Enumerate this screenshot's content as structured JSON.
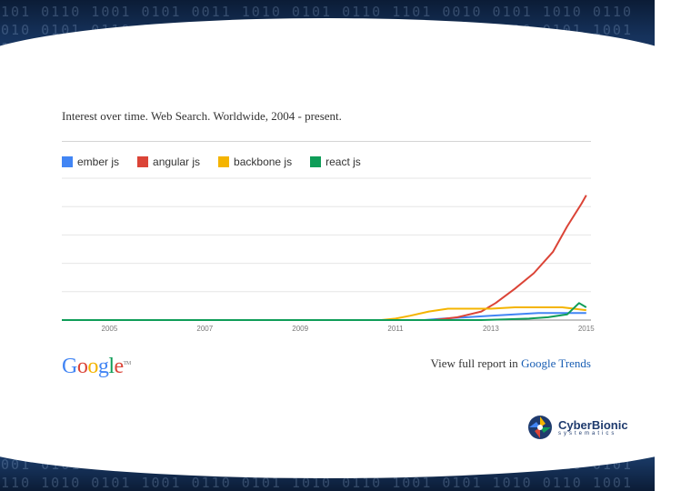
{
  "chart_data": {
    "type": "line",
    "title": "Interest over time. Web Search. Worldwide, 2004 - present.",
    "xlabel": "",
    "ylabel": "",
    "xlim": [
      2004,
      2015.1
    ],
    "ylim": [
      0,
      100
    ],
    "x_ticks": [
      "2005",
      "2007",
      "2009",
      "2011",
      "2013",
      "2015"
    ],
    "x_tick_values": [
      2005,
      2007,
      2009,
      2011,
      2013,
      2015
    ],
    "grid": true,
    "legend": "top",
    "series": [
      {
        "name": "ember js",
        "color": "#4285f4",
        "x": [
          2004,
          2011.6,
          2012.0,
          2012.5,
          2013.0,
          2013.5,
          2014.0,
          2014.5,
          2015.0
        ],
        "y": [
          0,
          0,
          1,
          2,
          3,
          4,
          5,
          5,
          5
        ]
      },
      {
        "name": "angular js",
        "color": "#db4437",
        "x": [
          2004,
          2011.8,
          2012.3,
          2012.8,
          2013.1,
          2013.5,
          2013.9,
          2014.3,
          2014.6,
          2014.9,
          2015.0
        ],
        "y": [
          0,
          0,
          2,
          6,
          12,
          22,
          33,
          48,
          66,
          82,
          88
        ]
      },
      {
        "name": "backbone js",
        "color": "#f4b400",
        "x": [
          2004,
          2010.7,
          2011.0,
          2011.3,
          2011.7,
          2012.1,
          2012.6,
          2013.0,
          2013.5,
          2014.0,
          2014.5,
          2015.0
        ],
        "y": [
          0,
          0,
          1,
          3,
          6,
          8,
          8,
          8,
          9,
          9,
          9,
          7
        ]
      },
      {
        "name": "react js",
        "color": "#0f9d58",
        "x": [
          2004,
          2012.8,
          2013.3,
          2013.8,
          2014.2,
          2014.6,
          2014.85,
          2015.0
        ],
        "y": [
          0,
          0,
          0.5,
          1,
          2,
          4,
          12,
          9
        ]
      }
    ]
  },
  "footer": {
    "google_logo": {
      "G": "G",
      "o1": "o",
      "o2": "o",
      "g": "g",
      "l": "l",
      "e": "e",
      "tm": "TM"
    },
    "view_report_prefix": "View full report in",
    "view_report_link": "Google Trends"
  },
  "brand": {
    "name": "CyberBionic",
    "sub": "systematics"
  },
  "colors": {
    "banner": "#15315a",
    "google_blue": "#4285f4",
    "google_red": "#db4437",
    "google_yellow": "#f4b400",
    "google_green": "#0f9d58"
  }
}
